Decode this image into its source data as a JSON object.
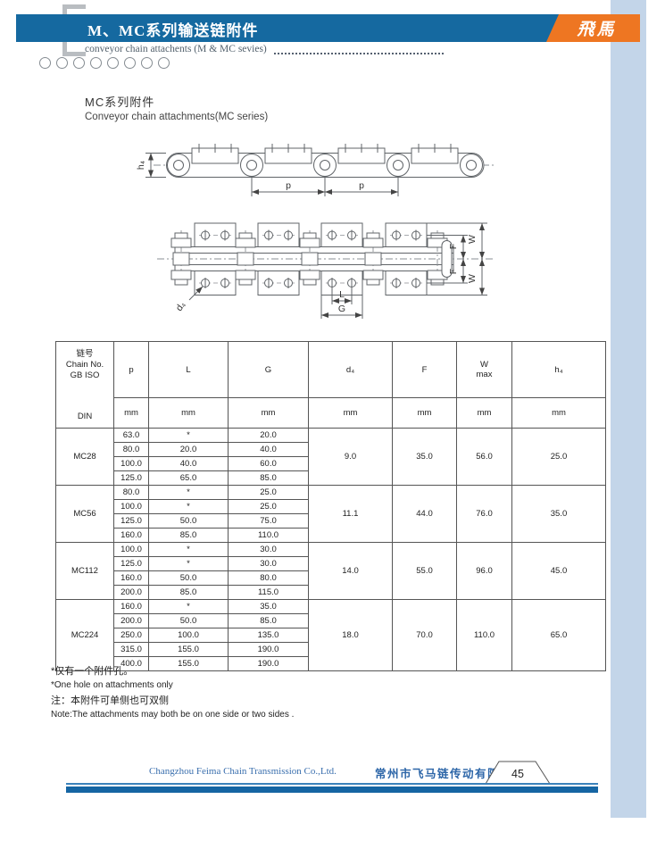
{
  "header": {
    "title_cn": "M、MC系列输送链附件",
    "subtitle_en": "conveyor chain attachents (M & MC sevies)",
    "logo_text": "飛馬"
  },
  "section": {
    "title_cn": "MC系列附件",
    "title_en": "Conveyor chain attachments(MC series)"
  },
  "drawing": {
    "h4_label": "h₄",
    "pitch_label": "p",
    "d4_label": "d₄",
    "L_label": "L",
    "G_label": "G",
    "F_label": "F",
    "W_label": "W"
  },
  "table": {
    "header": {
      "chain_no": [
        "链号",
        "Chain No.",
        "GB ISO"
      ],
      "din": "DIN",
      "cols": [
        {
          "label": "p"
        },
        {
          "label": "L"
        },
        {
          "label": "G"
        },
        {
          "label": "d₄"
        },
        {
          "label": "F"
        },
        {
          "label": "W",
          "sub": "max"
        },
        {
          "label": "h₄"
        }
      ],
      "unit": "mm"
    },
    "groups": [
      {
        "model": "MC28",
        "rows": [
          [
            "63.0",
            "*",
            "20.0"
          ],
          [
            "80.0",
            "20.0",
            "40.0"
          ],
          [
            "100.0",
            "40.0",
            "60.0"
          ],
          [
            "125.0",
            "65.0",
            "85.0"
          ]
        ],
        "d4": "9.0",
        "F": "35.0",
        "W": "56.0",
        "h4": "25.0"
      },
      {
        "model": "MC56",
        "rows": [
          [
            "80.0",
            "*",
            "25.0"
          ],
          [
            "100.0",
            "*",
            "25.0"
          ],
          [
            "125.0",
            "50.0",
            "75.0"
          ],
          [
            "160.0",
            "85.0",
            "110.0"
          ]
        ],
        "d4": "11.1",
        "F": "44.0",
        "W": "76.0",
        "h4": "35.0"
      },
      {
        "model": "MC112",
        "rows": [
          [
            "100.0",
            "*",
            "30.0"
          ],
          [
            "125.0",
            "*",
            "30.0"
          ],
          [
            "160.0",
            "50.0",
            "80.0"
          ],
          [
            "200.0",
            "85.0",
            "115.0"
          ]
        ],
        "d4": "14.0",
        "F": "55.0",
        "W": "96.0",
        "h4": "45.0"
      },
      {
        "model": "MC224",
        "rows": [
          [
            "160.0",
            "*",
            "35.0"
          ],
          [
            "200.0",
            "50.0",
            "85.0"
          ],
          [
            "250.0",
            "100.0",
            "135.0"
          ],
          [
            "315.0",
            "155.0",
            "190.0"
          ],
          [
            "400.0",
            "155.0",
            "190.0"
          ]
        ],
        "d4": "18.0",
        "F": "70.0",
        "W": "110.0",
        "h4": "65.0"
      }
    ]
  },
  "notes": [
    "*仅有一个附件孔。",
    "*One hole on attachments only",
    "注：本附件可单侧也可双侧",
    "Note:The attachments may both be on one side or two sides ."
  ],
  "footer": {
    "company_en": "Changzhou Feima Chain Transmission Co.,Ltd.",
    "company_cn": "常州市飞马链传动有限公司",
    "page_number": "45"
  },
  "colors": {
    "banner_blue": "#1569a0",
    "logo_orange": "#ee7622",
    "side_strip_blue": "#c3d5e9",
    "footer_bar_blue": "#1565a3"
  }
}
